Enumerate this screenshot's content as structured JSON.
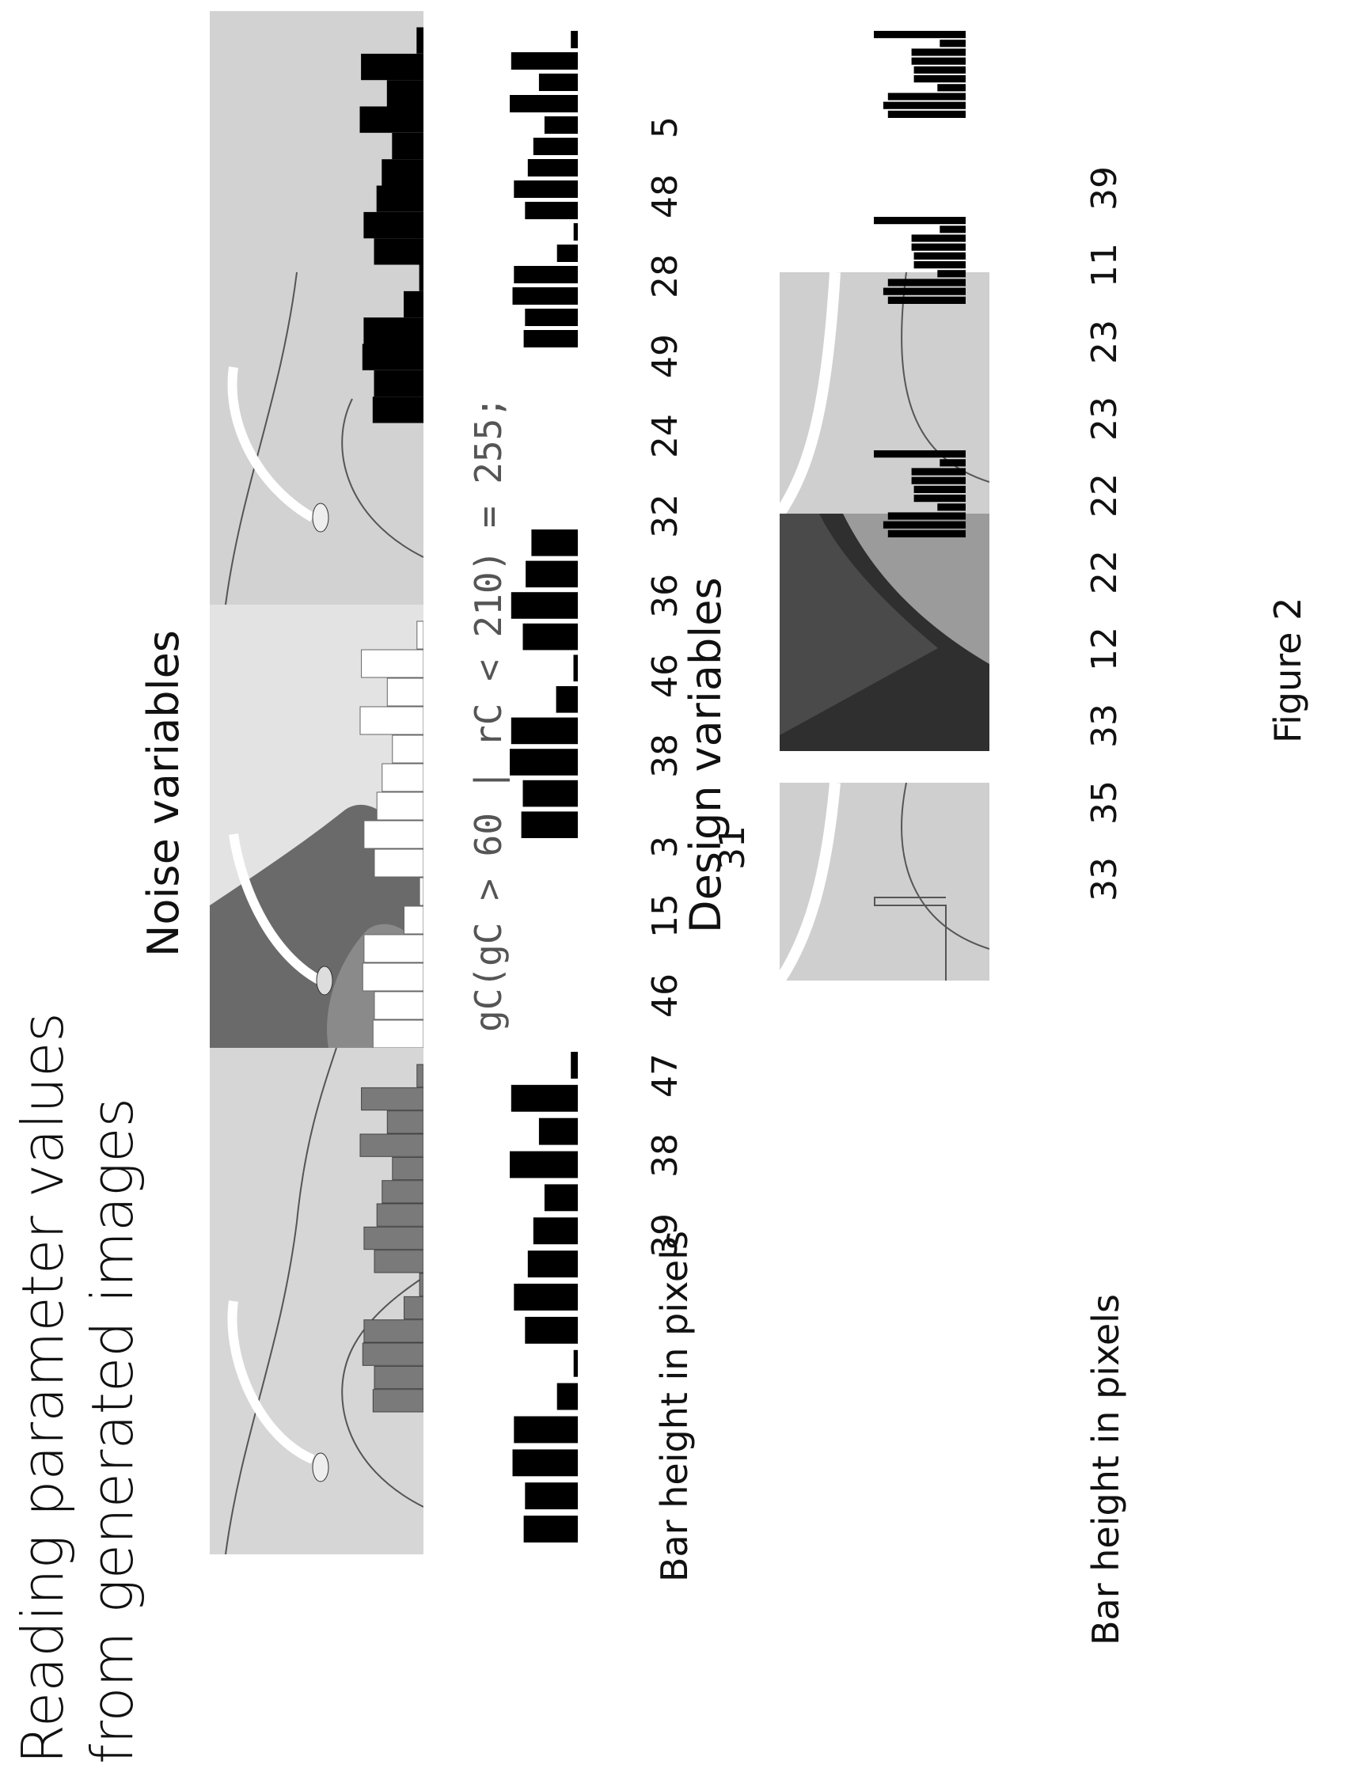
{
  "title_line1": "Reading parameter values",
  "title_line2": "from generated images",
  "noise_heading": "Noise variables",
  "design_heading": "Design variables",
  "code_text": "gC(gC > 60 | rC < 210) = 255;",
  "axis_label_top": "Bar height in pixels",
  "axis_label_bottom": "Bar height in pixels",
  "figure_label": "Figure 2",
  "noise_values": [
    "39",
    "38",
    "47",
    "46",
    "15",
    "3",
    "38",
    "46",
    "36",
    "32",
    "24",
    "49",
    "28",
    "48",
    "5"
  ],
  "noise_extra_value": "31",
  "design_values": [
    "33",
    "35",
    "33",
    "12",
    "22",
    "22",
    "23",
    "23",
    "11",
    "39"
  ],
  "colors": {
    "bar_gray": "#7a7a7a",
    "bar_black": "#000000",
    "bar_white": "#ffffff",
    "panel_light": "#d6d6d6",
    "panel_dark": "#3a3a3a"
  }
}
